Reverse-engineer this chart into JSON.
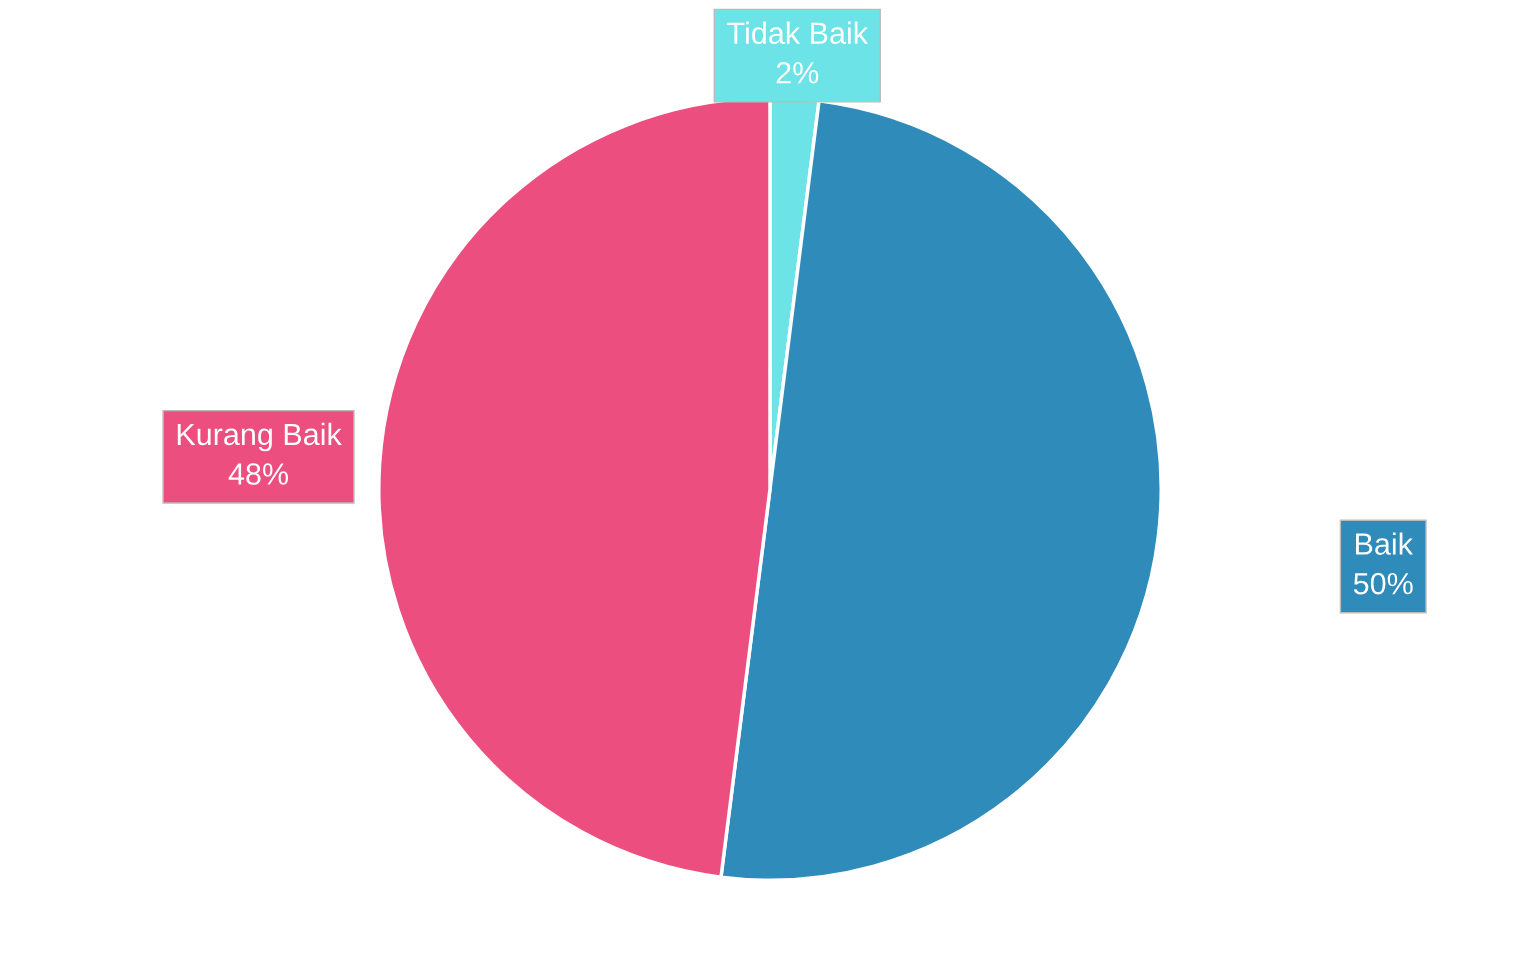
{
  "chart_data": {
    "type": "pie",
    "categories": [
      "Tidak Baik",
      "Baik",
      "Kurang Baik"
    ],
    "values": [
      2,
      50,
      48
    ],
    "colors": [
      "#6ce3e6",
      "#2e8bba",
      "#ec4f7f"
    ],
    "value_labels": [
      "2%",
      "50%",
      "48%"
    ]
  }
}
